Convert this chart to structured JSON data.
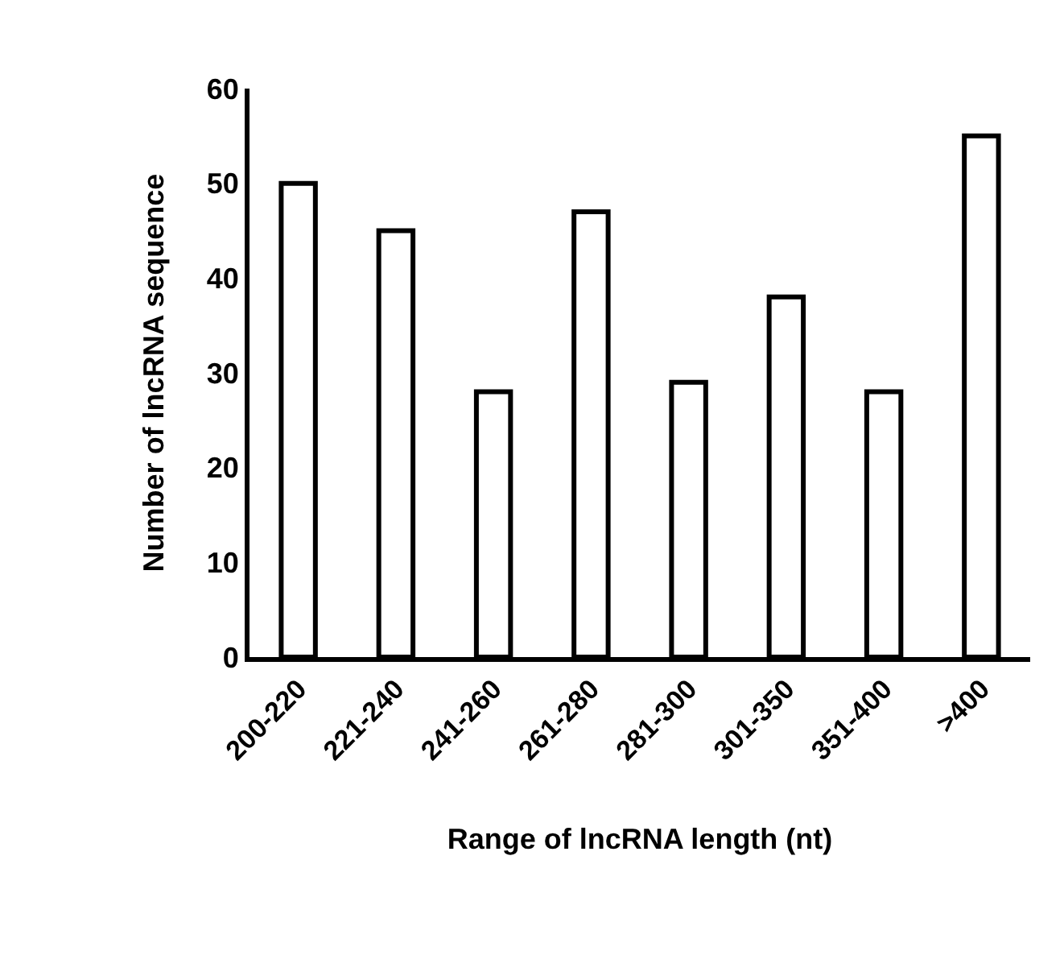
{
  "chart_data": {
    "type": "bar",
    "xlabel": "Range of lncRNA length (nt)",
    "ylabel": "Number of lncRNA sequence",
    "categories": [
      "200-220",
      "221-240",
      "241-260",
      "261-280",
      "281-300",
      "301-350",
      "351-400",
      ">400"
    ],
    "values": [
      50,
      45,
      28,
      47,
      29,
      38,
      28,
      55
    ],
    "color": "#ffffff",
    "ylim": [
      0,
      60
    ],
    "yticks": [
      0,
      10,
      20,
      30,
      40,
      50,
      60
    ],
    "grid": false,
    "legend": false
  }
}
